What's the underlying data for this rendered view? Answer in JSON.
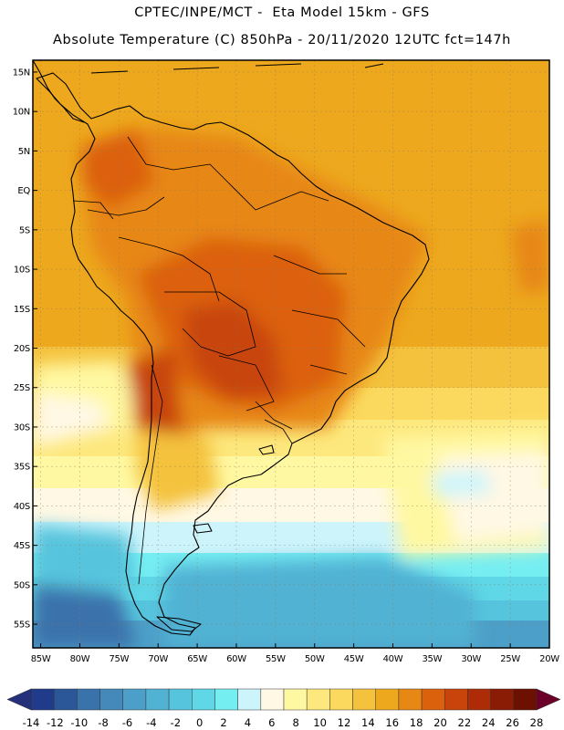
{
  "header": {
    "line1": "CPTEC/INPE/MCT -  Eta Model 15km - GFS",
    "line2": "Absolute Temperature (C) 850hPa - 20/11/2020 12UTC fct=147h"
  },
  "axes": {
    "lat_labels": [
      "15N",
      "10N",
      "5N",
      "EQ",
      "5S",
      "10S",
      "15S",
      "20S",
      "25S",
      "30S",
      "35S",
      "40S",
      "45S",
      "50S",
      "55S"
    ],
    "lat_values": [
      15,
      10,
      5,
      0,
      -5,
      -10,
      -15,
      -20,
      -25,
      -30,
      -35,
      -40,
      -45,
      -50,
      -55
    ],
    "lon_labels": [
      "85W",
      "80W",
      "75W",
      "70W",
      "65W",
      "60W",
      "55W",
      "50W",
      "45W",
      "40W",
      "35W",
      "30W",
      "25W",
      "20W"
    ],
    "lon_values": [
      -85,
      -80,
      -75,
      -70,
      -65,
      -60,
      -55,
      -50,
      -45,
      -40,
      -35,
      -30,
      -25,
      -20
    ],
    "lat_range": [
      -58,
      16.5
    ],
    "lon_range": [
      -86,
      -20
    ]
  },
  "colorbar": {
    "labels": [
      "-14",
      "-12",
      "-10",
      "-8",
      "-6",
      "-4",
      "-2",
      "0",
      "2",
      "4",
      "6",
      "8",
      "10",
      "12",
      "14",
      "16",
      "18",
      "20",
      "22",
      "24",
      "26",
      "28"
    ],
    "colors": [
      "#1f3b8a",
      "#2b5799",
      "#3a72ab",
      "#4589bb",
      "#4c9fc8",
      "#51b2d4",
      "#56c4dd",
      "#5fd7e6",
      "#75eef2",
      "#cdf4fb",
      "#fff8e4",
      "#fff8a2",
      "#fde87d",
      "#fbd95e",
      "#f4c23d",
      "#eda81e",
      "#e78714",
      "#dc610d",
      "#c8440a",
      "#ad2c07",
      "#8a1b05",
      "#6c1002"
    ],
    "under_color": "#25307a",
    "over_color": "#6a0027"
  },
  "map": {
    "field": "Absolute Temperature",
    "units": "C",
    "level": "850hPa"
  }
}
